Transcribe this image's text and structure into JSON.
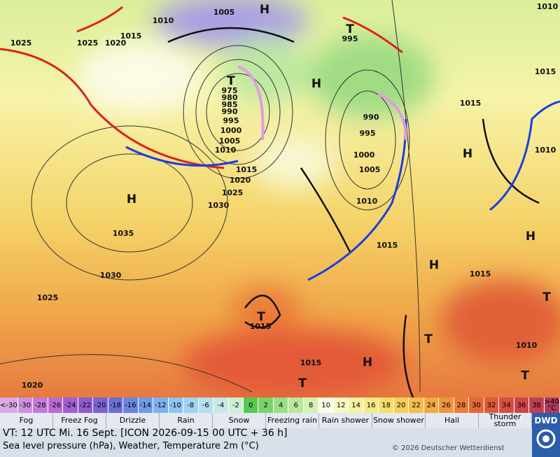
{
  "map": {
    "isobar_labels": [
      1005,
      1010,
      1015,
      1020,
      1025,
      1025,
      975,
      980,
      985,
      990,
      995,
      1000,
      1005,
      1010,
      1015,
      1020,
      1025,
      1030,
      1035,
      1030,
      1025,
      1020,
      995,
      990,
      995,
      1000,
      1005,
      1010,
      1015,
      1015,
      1015,
      1010,
      1010,
      1015,
      1010,
      1015,
      1015
    ],
    "systems": [
      "H",
      "T",
      "H",
      "T",
      "H",
      "H",
      "H",
      "H",
      "T",
      "T",
      "H",
      "T",
      "T",
      "T"
    ]
  },
  "scale": {
    "cells": [
      {
        "label": "<-30",
        "color": "#d9a8e6"
      },
      {
        "label": "-30",
        "color": "#cf8fe0"
      },
      {
        "label": "-28",
        "color": "#c37ad9"
      },
      {
        "label": "-26",
        "color": "#b86ad4"
      },
      {
        "label": "-24",
        "color": "#a35fd0"
      },
      {
        "label": "-22",
        "color": "#8f5ccc"
      },
      {
        "label": "-20",
        "color": "#7a62d0"
      },
      {
        "label": "-18",
        "color": "#6a6fd6"
      },
      {
        "label": "-16",
        "color": "#6a84e0"
      },
      {
        "label": "-14",
        "color": "#6f9ae8"
      },
      {
        "label": "-12",
        "color": "#7cb0ee"
      },
      {
        "label": "-10",
        "color": "#8cc4f2"
      },
      {
        "label": "-8",
        "color": "#9fd4f3"
      },
      {
        "label": "-6",
        "color": "#b3e0ef"
      },
      {
        "label": "-4",
        "color": "#c5eae5"
      },
      {
        "label": "-2",
        "color": "#cdeed2"
      },
      {
        "label": "0",
        "color": "#55c855"
      },
      {
        "label": "2",
        "color": "#79d36b"
      },
      {
        "label": "4",
        "color": "#9ade83"
      },
      {
        "label": "6",
        "color": "#b9e89c"
      },
      {
        "label": "8",
        "color": "#d5f0b4"
      },
      {
        "label": "10",
        "color": "#fbfbe6"
      },
      {
        "label": "12",
        "color": "#f7f7c4"
      },
      {
        "label": "14",
        "color": "#f4f1a4"
      },
      {
        "label": "16",
        "color": "#f3ea86"
      },
      {
        "label": "18",
        "color": "#f5df6a"
      },
      {
        "label": "20",
        "color": "#f5cf58"
      },
      {
        "label": "22",
        "color": "#f4bd4c"
      },
      {
        "label": "24",
        "color": "#f2a944"
      },
      {
        "label": "26",
        "color": "#ef953d"
      },
      {
        "label": "28",
        "color": "#ea7e38"
      },
      {
        "label": "30",
        "color": "#e46836"
      },
      {
        "label": "32",
        "color": "#de5a3a"
      },
      {
        "label": "34",
        "color": "#d64e40"
      },
      {
        "label": "36",
        "color": "#cc4548"
      },
      {
        "label": "38",
        "color": "#c04050"
      },
      {
        "label": ">40 °C",
        "color": "#b03a5a"
      }
    ]
  },
  "legend": [
    "Fog",
    "Freez Fog",
    "Drizzle",
    "Rain",
    "Snow",
    "Freezing rain",
    "Rain shower",
    "Snow shower",
    "Hail",
    "Thunder storm"
  ],
  "footer": {
    "valid_time": "VT: 12 UTC Mi.  16 Sept. [ICON 2026-09-15  00 UTC + 36 h]",
    "description": "Sea level pressure (hPa), Weather, Temperature 2m (°C)",
    "copyright": "© 2026 Deutscher Wetterdienst",
    "logo": "DWD"
  }
}
